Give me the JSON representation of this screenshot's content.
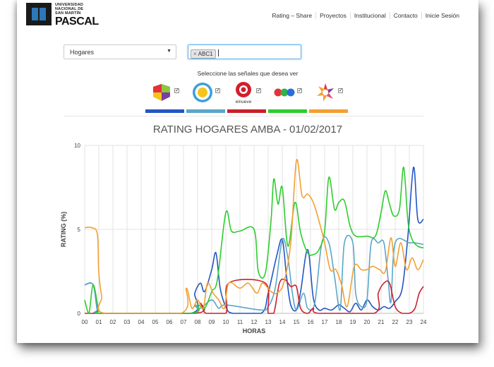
{
  "header": {
    "logo_small": "UNIVERSIDAD NACIONAL DE SAN MARTÍN",
    "logo_big": "PASCAL",
    "nav": [
      "Rating – Share",
      "Proyectos",
      "Institucional",
      "Contacto",
      "Inicie Sesión"
    ]
  },
  "controls": {
    "select_value": "Hogares",
    "tag": "ABC1",
    "prompt": "Seleccione las señales que desea ver",
    "channels": [
      {
        "name": "canal-13",
        "icon": "canal-13-logo-icon",
        "color": "#2355c4"
      },
      {
        "name": "tv-publica",
        "icon": "tv-publica-logo-icon",
        "color": "#5aa6c9"
      },
      {
        "name": "elnueve",
        "icon": "elnueve-logo-icon",
        "color": "#c8202c",
        "caption": "elnueve"
      },
      {
        "name": "america",
        "icon": "america-logo-icon",
        "color": "#2ecc2e"
      },
      {
        "name": "telefe",
        "icon": "telefe-logo-icon",
        "color": "#f2a033"
      }
    ]
  },
  "chart_data": {
    "type": "line",
    "title": "RATING HOGARES AMBA - 01/02/2017",
    "xlabel": "HORAS",
    "ylabel": "RATING (%)",
    "xlim": [
      0,
      24
    ],
    "ylim": [
      0,
      10
    ],
    "x_ticks": [
      "00",
      "01",
      "02",
      "03",
      "04",
      "05",
      "06",
      "07",
      "08",
      "09",
      "10",
      "11",
      "12",
      "13",
      "14",
      "15",
      "16",
      "17",
      "18",
      "19",
      "20",
      "21",
      "22",
      "23",
      "24"
    ],
    "y_ticks": [
      "0",
      "5",
      "10"
    ],
    "series": [
      {
        "color": "#2355c4",
        "points": [
          [
            0,
            1.7
          ],
          [
            0.6,
            1.7
          ],
          [
            0.9,
            0.2
          ],
          [
            1.2,
            0
          ],
          [
            7.5,
            0
          ],
          [
            7.8,
            1.2
          ],
          [
            8.2,
            1.8
          ],
          [
            8.5,
            1.3
          ],
          [
            9,
            2.6
          ],
          [
            9.3,
            3.6
          ],
          [
            9.6,
            1.5
          ],
          [
            10,
            0.4
          ],
          [
            10.5,
            0
          ],
          [
            12.5,
            0
          ],
          [
            13,
            1.2
          ],
          [
            13.6,
            3.4
          ],
          [
            14,
            4.4
          ],
          [
            14.3,
            2.2
          ],
          [
            14.6,
            0.5
          ],
          [
            15,
            0.2
          ],
          [
            15.3,
            1.3
          ],
          [
            15.8,
            3.8
          ],
          [
            16.2,
            0.9
          ],
          [
            16.6,
            0.2
          ],
          [
            17,
            0.3
          ],
          [
            17.5,
            0.2
          ],
          [
            18,
            0.5
          ],
          [
            18.4,
            0.3
          ],
          [
            18.8,
            0.1
          ],
          [
            19.2,
            0.6
          ],
          [
            19.6,
            0.2
          ],
          [
            20,
            0.8
          ],
          [
            20.4,
            0.4
          ],
          [
            20.8,
            0.2
          ],
          [
            21.2,
            0.4
          ],
          [
            21.6,
            0.3
          ],
          [
            22,
            0.7
          ],
          [
            22.5,
            1.5
          ],
          [
            22.9,
            4.6
          ],
          [
            23.3,
            8.7
          ],
          [
            23.6,
            5.6
          ],
          [
            24,
            5.6
          ]
        ]
      },
      {
        "color": "#5aa6c9",
        "points": [
          [
            0,
            1.7
          ],
          [
            0.6,
            1.7
          ],
          [
            0.9,
            0.3
          ],
          [
            1.2,
            0
          ],
          [
            7.5,
            0
          ],
          [
            7.8,
            0.5
          ],
          [
            8.2,
            0.3
          ],
          [
            9,
            0.8
          ],
          [
            9.5,
            0.3
          ],
          [
            10,
            0.5
          ],
          [
            12.5,
            0.2
          ],
          [
            13,
            0.4
          ],
          [
            13.5,
            1.5
          ],
          [
            14,
            4.4
          ],
          [
            14.4,
            3.3
          ],
          [
            14.7,
            1.3
          ],
          [
            15,
            0.2
          ],
          [
            15.5,
            1.2
          ],
          [
            15.8,
            0.3
          ],
          [
            16.3,
            0.6
          ],
          [
            16.8,
            4.2
          ],
          [
            17.3,
            4.2
          ],
          [
            17.7,
            2.2
          ],
          [
            18.1,
            0.2
          ],
          [
            18.4,
            4.2
          ],
          [
            19,
            4.2
          ],
          [
            19.2,
            1.2
          ],
          [
            19.6,
            0.4
          ],
          [
            20,
            0.8
          ],
          [
            20.3,
            4.2
          ],
          [
            20.8,
            4.2
          ],
          [
            21.2,
            4.2
          ],
          [
            21.5,
            2
          ],
          [
            21.7,
            0.7
          ],
          [
            22,
            4.2
          ],
          [
            23,
            4.2
          ],
          [
            23.4,
            4.2
          ],
          [
            24,
            4.1
          ]
        ]
      },
      {
        "color": "#c8202c",
        "points": [
          [
            0,
            0
          ],
          [
            7.8,
            0
          ],
          [
            8.2,
            0.6
          ],
          [
            8.6,
            0
          ],
          [
            10,
            0
          ],
          [
            10.2,
            1.8
          ],
          [
            12.8,
            1.8
          ],
          [
            13,
            0
          ],
          [
            13.4,
            0
          ],
          [
            13.8,
            1.8
          ],
          [
            14.2,
            2
          ],
          [
            14.6,
            1.6
          ],
          [
            15,
            1.6
          ],
          [
            15.3,
            0.3
          ],
          [
            15.8,
            0
          ],
          [
            16.2,
            0.3
          ],
          [
            16.6,
            0
          ],
          [
            20.5,
            0
          ],
          [
            20.8,
            1.2
          ],
          [
            21.2,
            1.8
          ],
          [
            21.6,
            1.8
          ],
          [
            22,
            0.4
          ],
          [
            22.5,
            0
          ],
          [
            23,
            0
          ],
          [
            23.4,
            0.3
          ],
          [
            23.7,
            1.2
          ],
          [
            24,
            1.6
          ]
        ]
      },
      {
        "color": "#2ecc2e",
        "points": [
          [
            0,
            0.8
          ],
          [
            0.3,
            0
          ],
          [
            0.6,
            1.7
          ],
          [
            1,
            0.2
          ],
          [
            1.3,
            0
          ],
          [
            7.5,
            0
          ],
          [
            8,
            0.5
          ],
          [
            8.5,
            0.3
          ],
          [
            9,
            1.3
          ],
          [
            9.4,
            2
          ],
          [
            10,
            6
          ],
          [
            10.4,
            4.9
          ],
          [
            11,
            4.9
          ],
          [
            12,
            5
          ],
          [
            12.3,
            2.5
          ],
          [
            12.8,
            2.4
          ],
          [
            13.2,
            5.5
          ],
          [
            13.4,
            8
          ],
          [
            13.7,
            6.5
          ],
          [
            14,
            7.5
          ],
          [
            14.4,
            4
          ],
          [
            14.9,
            6.6
          ],
          [
            15.3,
            4.8
          ],
          [
            15.8,
            3.6
          ],
          [
            16.2,
            3.5
          ],
          [
            16.6,
            3.8
          ],
          [
            17,
            4.9
          ],
          [
            17.3,
            8.1
          ],
          [
            17.7,
            6.2
          ],
          [
            18,
            6.6
          ],
          [
            18.4,
            6.7
          ],
          [
            18.8,
            5.2
          ],
          [
            19.2,
            4.6
          ],
          [
            20,
            4.6
          ],
          [
            20.6,
            4.6
          ],
          [
            21,
            6
          ],
          [
            21.3,
            7.3
          ],
          [
            21.6,
            6.5
          ],
          [
            21.9,
            5.8
          ],
          [
            22.3,
            6.2
          ],
          [
            22.6,
            8.7
          ],
          [
            22.9,
            5.5
          ],
          [
            23.2,
            4.4
          ],
          [
            23.6,
            4
          ],
          [
            24,
            3.9
          ]
        ]
      },
      {
        "color": "#f2a033",
        "points": [
          [
            0,
            5.1
          ],
          [
            0.5,
            5.1
          ],
          [
            0.9,
            4.7
          ],
          [
            1,
            2.4
          ],
          [
            1.2,
            1
          ],
          [
            1.4,
            0
          ],
          [
            6.8,
            0
          ],
          [
            7.2,
            1.5
          ],
          [
            7.6,
            0.3
          ],
          [
            8,
            0.8
          ],
          [
            8.4,
            0.3
          ],
          [
            8.7,
            1.8
          ],
          [
            9.1,
            1.2
          ],
          [
            9.5,
            0.8
          ],
          [
            9.9,
            0.3
          ],
          [
            10.2,
            1.8
          ],
          [
            11,
            1.5
          ],
          [
            11.6,
            1.8
          ],
          [
            12.2,
            1.2
          ],
          [
            12.6,
            1.8
          ],
          [
            13.2,
            1.3
          ],
          [
            13.6,
            1.2
          ],
          [
            14.1,
            1.8
          ],
          [
            14.6,
            4.2
          ],
          [
            15,
            9.1
          ],
          [
            15.4,
            7
          ],
          [
            15.8,
            7.1
          ],
          [
            16.2,
            6.6
          ],
          [
            16.6,
            5.5
          ],
          [
            17,
            4.2
          ],
          [
            17.4,
            2.6
          ],
          [
            17.8,
            2.6
          ],
          [
            18.2,
            1.7
          ],
          [
            18.6,
            0.4
          ],
          [
            19.1,
            2.8
          ],
          [
            19.6,
            2.6
          ],
          [
            20,
            2.6
          ],
          [
            20.4,
            2.8
          ],
          [
            20.9,
            2.6
          ],
          [
            21.3,
            2.5
          ],
          [
            21.7,
            4.5
          ],
          [
            22,
            2.8
          ],
          [
            22.4,
            4.2
          ],
          [
            22.8,
            2.6
          ],
          [
            23.2,
            3.3
          ],
          [
            23.6,
            2.6
          ],
          [
            24,
            3.2
          ]
        ]
      }
    ]
  }
}
